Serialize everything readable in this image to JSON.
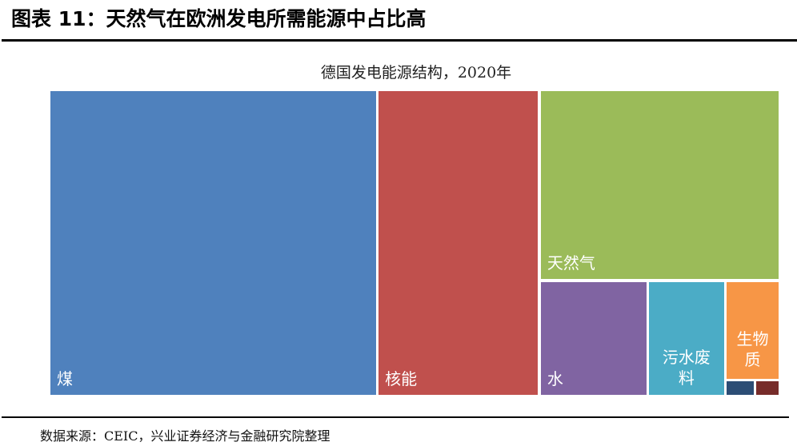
{
  "header": {
    "title": "图表 11：天然气在欧洲发电所需能源中占比高"
  },
  "chart_data": {
    "type": "treemap",
    "title": "德国发电能源结构，2020年",
    "unit": "approximate share (%)",
    "items": [
      {
        "label": "煤",
        "value": 44.9,
        "color": "#4F81BD"
      },
      {
        "label": "核能",
        "value": 22.3,
        "color": "#C0504D"
      },
      {
        "label": "天然气",
        "value": 20.5,
        "color": "#9BBB59"
      },
      {
        "label": "水",
        "value": 5.6,
        "color": "#8064A2"
      },
      {
        "label": "污水废料",
        "value": 4.0,
        "color": "#4BACC6"
      },
      {
        "label": "生物质",
        "value": 2.4,
        "color": "#F79646"
      },
      {
        "label": "",
        "value": 0.2,
        "color": "#2C4D75"
      },
      {
        "label": "",
        "value": 0.16,
        "color": "#772C2A"
      }
    ]
  },
  "footer": {
    "source": "数据来源：CEIC，兴业证券经济与金融研究院整理"
  }
}
